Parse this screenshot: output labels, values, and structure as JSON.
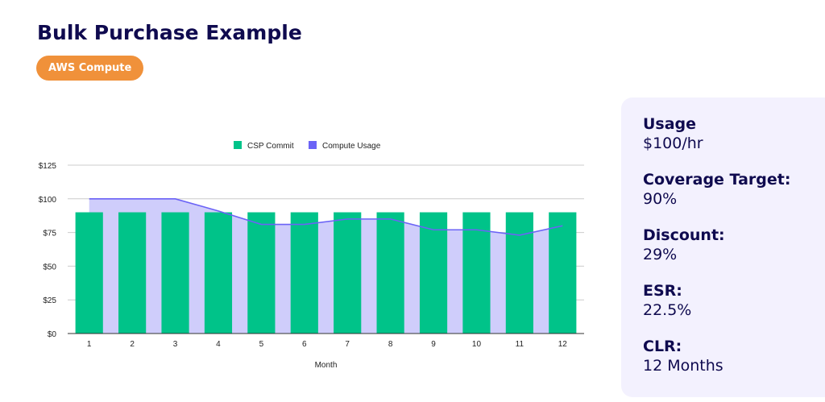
{
  "header": {
    "title": "Bulk Purchase Example",
    "badge": "AWS Compute"
  },
  "colors": {
    "title": "#0f0a4f",
    "badge": "#f0913a",
    "csp_commit": "#00c389",
    "compute_usage_line": "#6b63f6",
    "compute_usage_fill": "#cfcdfb",
    "panel_bg": "#f3f1fe"
  },
  "metrics": [
    {
      "label": "Usage",
      "value": "$100/hr"
    },
    {
      "label": "Coverage Target:",
      "value": "90%"
    },
    {
      "label": "Discount:",
      "value": "29%"
    },
    {
      "label": "ESR:",
      "value": "22.5%"
    },
    {
      "label": "CLR:",
      "value": "12 Months"
    }
  ],
  "chart_data": {
    "type": "bar",
    "title": "",
    "xlabel": "Month",
    "ylabel": "",
    "categories": [
      "1",
      "2",
      "3",
      "4",
      "5",
      "6",
      "7",
      "8",
      "9",
      "10",
      "11",
      "12"
    ],
    "ylim": [
      0,
      125
    ],
    "yticks": [
      0,
      25,
      50,
      75,
      100,
      125
    ],
    "ytick_labels": [
      "$0",
      "$25",
      "$50",
      "$75",
      "$100",
      "$125"
    ],
    "grid": true,
    "legend_position": "top",
    "series": [
      {
        "name": "CSP Commit",
        "type": "bar",
        "values": [
          90,
          90,
          90,
          90,
          90,
          90,
          90,
          90,
          90,
          90,
          90,
          90
        ]
      },
      {
        "name": "Compute Usage",
        "type": "area",
        "values": [
          100,
          100,
          100,
          91,
          81,
          81,
          85,
          85,
          77,
          77,
          73,
          80
        ]
      }
    ]
  }
}
